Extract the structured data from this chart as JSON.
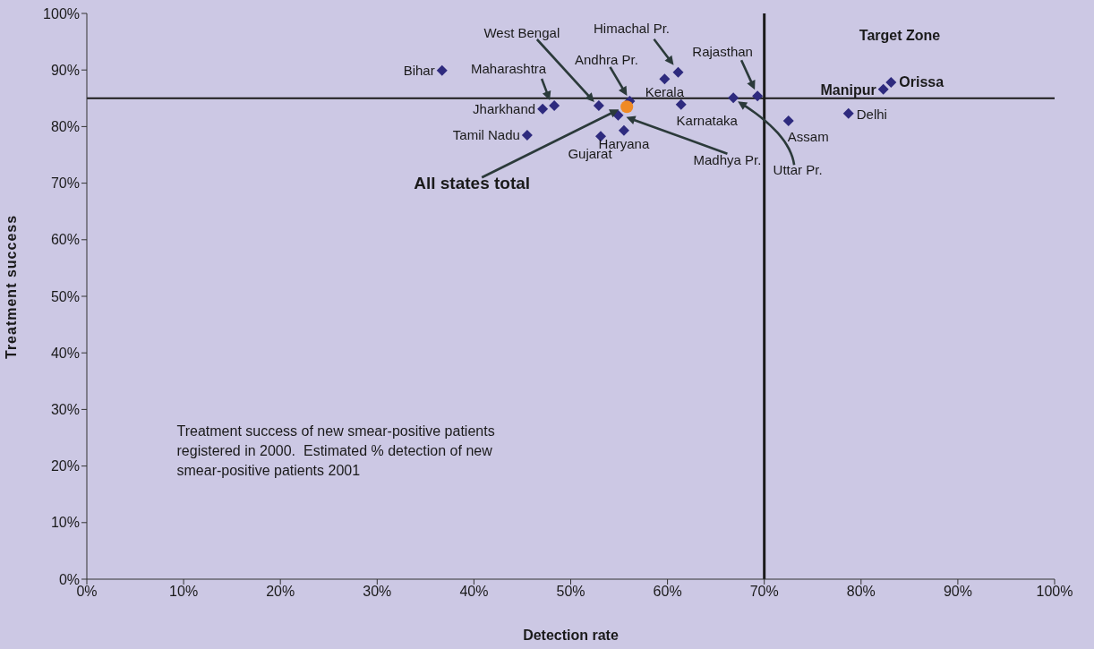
{
  "chart_data": {
    "type": "scatter",
    "xlabel": "Detection rate",
    "ylabel": "Treatment success",
    "xlim": [
      0,
      100
    ],
    "ylim": [
      0,
      100
    ],
    "xticks": [
      {
        "value": 0,
        "label": "0%"
      },
      {
        "value": 10,
        "label": "10%"
      },
      {
        "value": 20,
        "label": "20%"
      },
      {
        "value": 30,
        "label": "30%"
      },
      {
        "value": 40,
        "label": "40%"
      },
      {
        "value": 50,
        "label": "50%"
      },
      {
        "value": 60,
        "label": "60%"
      },
      {
        "value": 70,
        "label": "70%"
      },
      {
        "value": 80,
        "label": "80%"
      },
      {
        "value": 90,
        "label": "90%"
      },
      {
        "value": 100,
        "label": "100%"
      }
    ],
    "yticks": [
      {
        "value": 0,
        "label": "0%"
      },
      {
        "value": 10,
        "label": "10%"
      },
      {
        "value": 20,
        "label": "20%"
      },
      {
        "value": 30,
        "label": "30%"
      },
      {
        "value": 40,
        "label": "40%"
      },
      {
        "value": 50,
        "label": "50%"
      },
      {
        "value": 60,
        "label": "60%"
      },
      {
        "value": 70,
        "label": "70%"
      },
      {
        "value": 80,
        "label": "80%"
      },
      {
        "value": 90,
        "label": "90%"
      },
      {
        "value": 100,
        "label": "100%"
      }
    ],
    "grid": false,
    "series": [
      {
        "color": "#2e2a7e",
        "marker": "diamond",
        "x": [
          36.7,
          48.3,
          47.1,
          45.5,
          52.9,
          56.1,
          55.5,
          53.1,
          54.9,
          59.7,
          61.1,
          61.4,
          66.8,
          69.3,
          72.5,
          78.7,
          82.3,
          83.1
        ],
        "values": [
          89.9,
          83.7,
          83.1,
          78.5,
          83.7,
          84.5,
          79.3,
          78.3,
          82.0,
          88.4,
          89.6,
          83.9,
          85.1,
          85.4,
          81.0,
          82.3,
          86.6,
          87.8
        ]
      },
      {
        "color": "#f08a24",
        "marker": "circle",
        "x": [
          55.8
        ],
        "values": [
          83.5
        ]
      }
    ],
    "ref_lines": [
      {
        "axis": "y",
        "value": 85,
        "color": "#1a1a1a"
      },
      {
        "axis": "x",
        "value": 70,
        "color": "#1a1a1a"
      }
    ],
    "annotations": [
      {
        "text": "Bihar",
        "x": 36.7,
        "y": 89.9
      },
      {
        "text": "Maharashtra",
        "x": 48.3,
        "y": 83.7
      },
      {
        "text": "Jharkhand",
        "x": 47.1,
        "y": 83.1
      },
      {
        "text": "Tamil Nadu",
        "x": 45.5,
        "y": 78.5
      },
      "West Bengal",
      {
        "text": "Andhra Pr.",
        "x": 56.1,
        "y": 84.5
      },
      "All states total",
      {
        "text": "Haryana",
        "x": 55.5,
        "y": 79.3
      },
      {
        "text": "Gujarat",
        "x": 53.1,
        "y": 78.3
      },
      "Madhya Pr.",
      {
        "text": "Kerala",
        "x": 59.7,
        "y": 88.4
      },
      {
        "text": "Himachal Pr.",
        "x": 61.1,
        "y": 89.6
      },
      {
        "text": "Karnataka",
        "x": 61.4,
        "y": 83.9
      },
      "Uttar Pr.",
      {
        "text": "Rajasthan",
        "x": 69.3,
        "y": 85.4
      },
      {
        "text": "Assam",
        "x": 72.5,
        "y": 81.0
      },
      {
        "text": "Delhi",
        "x": 78.7,
        "y": 82.3
      },
      {
        "text": "Manipur",
        "x": 82.3,
        "y": 86.6
      },
      {
        "text": "Orissa",
        "x": 83.1,
        "y": 87.8
      },
      "Target Zone",
      "Treatment success of new smear-positive patients\nregistered in 2000.  Estimated % detection of new\nsmear-positive patients 2001"
    ]
  }
}
